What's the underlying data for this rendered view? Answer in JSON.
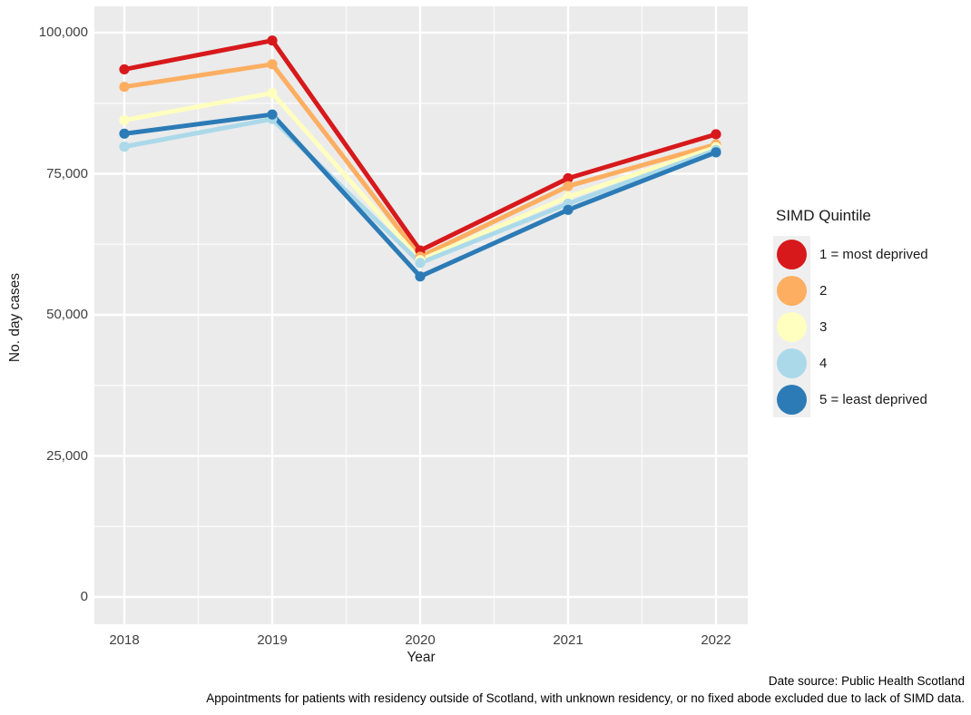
{
  "chart_data": {
    "type": "line",
    "title": "",
    "xlabel": "Year",
    "ylabel": "No. day cases",
    "x": [
      2018,
      2019,
      2020,
      2021,
      2022
    ],
    "xtick_labels": [
      "2018",
      "2019",
      "2020",
      "2021",
      "2022"
    ],
    "yticks": [
      0,
      25000,
      50000,
      75000,
      100000
    ],
    "ytick_labels": [
      "0",
      "25,000",
      "50,000",
      "75,000",
      "100,000"
    ],
    "yticks_minor": [
      12500,
      37500,
      62500,
      87500
    ],
    "ylim": [
      0,
      100000
    ],
    "grid": "white major and minor gridlines on grey panel",
    "legend_position": "right",
    "legend_title": "SIMD Quintile",
    "series": [
      {
        "name": "1 = most deprived",
        "color": "#D7191C",
        "values": [
          93500,
          98600,
          61400,
          74200,
          82000
        ]
      },
      {
        "name": "2",
        "color": "#FDAE61",
        "values": [
          90400,
          94400,
          60300,
          72800,
          80200
        ]
      },
      {
        "name": "3",
        "color": "#FFFFBF",
        "values": [
          84500,
          89300,
          59700,
          70900,
          79700
        ]
      },
      {
        "name": "4",
        "color": "#ABD9E9",
        "values": [
          79800,
          84700,
          59200,
          69700,
          79200
        ]
      },
      {
        "name": "5 = least deprived",
        "color": "#2C7BB6",
        "values": [
          82100,
          85500,
          56800,
          68600,
          78800
        ]
      }
    ],
    "caption_line1": "Date source: Public Health Scotland",
    "caption_line2": "Appointments for patients with residency outside of Scotland, with unknown residency, or no fixed abode excluded due to lack of SIMD data."
  },
  "style": {
    "panel_bg": "#EBEBEB",
    "grid_color": "#FFFFFF",
    "legend_key_bg": "#EFEFEF",
    "tick_text_color": "#404040"
  }
}
